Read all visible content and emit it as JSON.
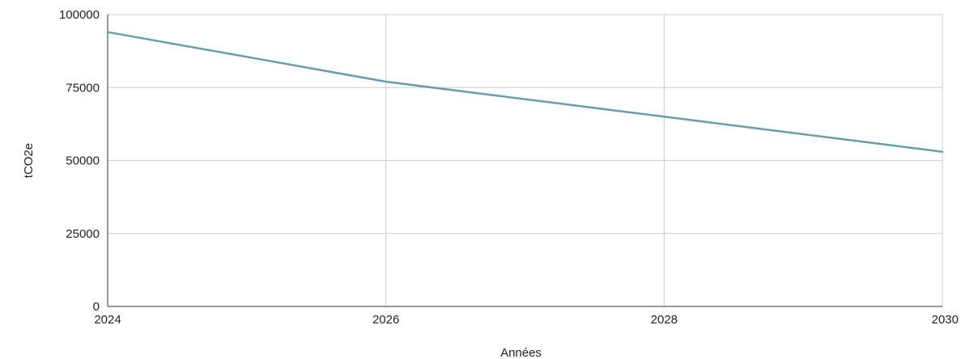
{
  "chart_data": {
    "type": "line",
    "title": "",
    "xlabel": "Années",
    "ylabel": "tCO2e",
    "xlim": [
      2024,
      2030
    ],
    "ylim": [
      0,
      100000
    ],
    "x_ticks": [
      2024,
      2026,
      2028,
      2030
    ],
    "y_ticks": [
      0,
      25000,
      50000,
      75000,
      100000
    ],
    "grid": true,
    "legend": "none",
    "series": [
      {
        "color": "#6a9cb0",
        "x": [
          2024,
          2026,
          2028,
          2030
        ],
        "y": [
          94000,
          77000,
          65000,
          53000
        ]
      }
    ]
  }
}
